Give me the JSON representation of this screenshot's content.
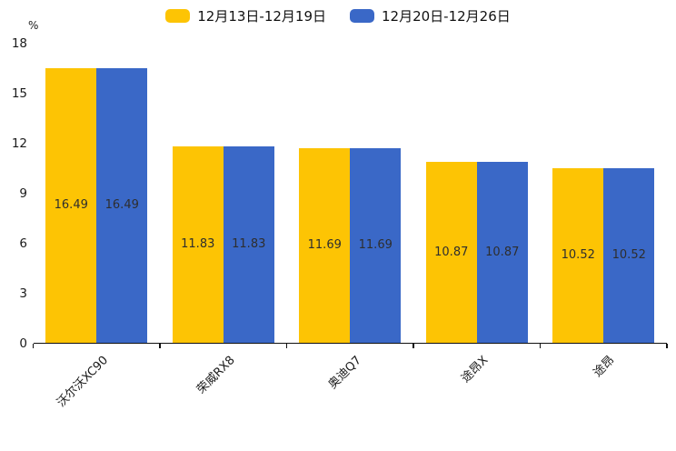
{
  "chart_data": {
    "type": "bar",
    "title": "",
    "unit_label": "%",
    "categories": [
      "沃尔沃XC90",
      "荣威RX8",
      "奥迪Q7",
      "途昂X",
      "途昂"
    ],
    "series": [
      {
        "name": "12月13日-12月19日",
        "color": "#FDC404",
        "values": [
          16.49,
          11.83,
          11.69,
          10.87,
          10.52
        ]
      },
      {
        "name": "12月20日-12月26日",
        "color": "#3A68C7",
        "values": [
          16.49,
          11.83,
          11.69,
          10.87,
          10.52
        ]
      }
    ],
    "y_axis": {
      "min": 0,
      "max": 18,
      "ticks": [
        0,
        3,
        6,
        9,
        12,
        15,
        18
      ],
      "label": "%"
    },
    "x_axis": {
      "tick_marks_between_groups": true
    },
    "legend_position": "top-center",
    "grid": false,
    "value_labels": "inside-center"
  },
  "colors": {
    "background": "#ffffff",
    "axis_line": "#111111",
    "axis_text": "#1a1a1a",
    "value_label_text": "#2e2e2e",
    "series_yellow": "#FDC404",
    "series_blue": "#3A68C7"
  }
}
